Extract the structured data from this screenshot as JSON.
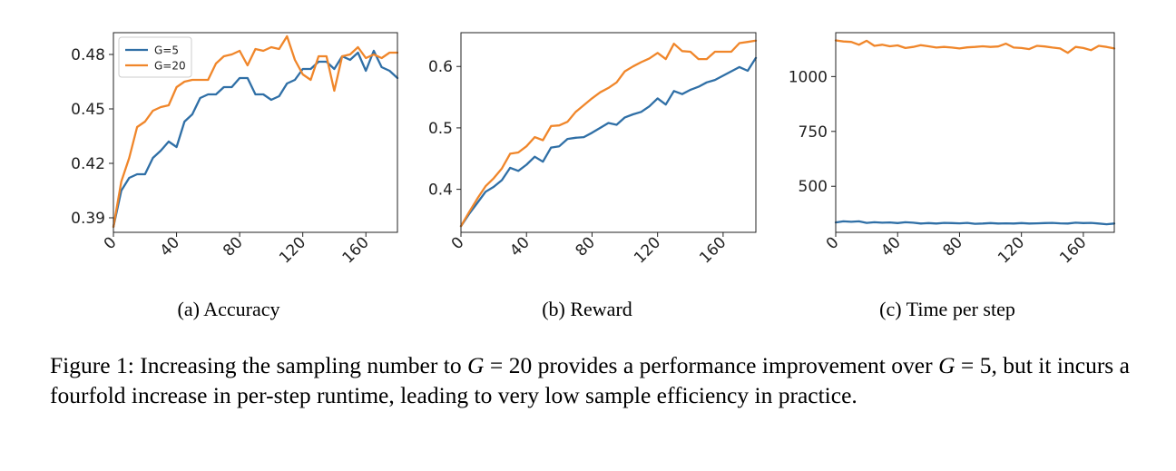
{
  "colors": {
    "g5": "#2f6fa6",
    "g20": "#f0862a"
  },
  "chart_data": [
    {
      "type": "line",
      "title": "",
      "xlabel": "",
      "ylabel": "",
      "xticks": [
        0,
        40,
        80,
        120,
        160
      ],
      "yticks": [
        0.39,
        0.42,
        0.45,
        0.48
      ],
      "ytick_labels": [
        "0.39",
        "0.42",
        "0.45",
        "0.48"
      ],
      "xlim": [
        0,
        180
      ],
      "ylim": [
        0.382,
        0.492
      ],
      "legend": {
        "placement": "top-left",
        "entries": [
          "G=5",
          "G=20"
        ]
      },
      "x": [
        0,
        5,
        10,
        15,
        20,
        25,
        30,
        35,
        40,
        45,
        50,
        55,
        60,
        65,
        70,
        75,
        80,
        85,
        90,
        95,
        100,
        105,
        110,
        115,
        120,
        125,
        130,
        135,
        140,
        145,
        150,
        155,
        160,
        165,
        170,
        175,
        180
      ],
      "series": [
        {
          "name": "G=5",
          "values": [
            0.385,
            0.405,
            0.412,
            0.414,
            0.414,
            0.423,
            0.427,
            0.432,
            0.429,
            0.443,
            0.447,
            0.456,
            0.458,
            0.458,
            0.462,
            0.462,
            0.467,
            0.467,
            0.458,
            0.458,
            0.455,
            0.457,
            0.464,
            0.466,
            0.472,
            0.472,
            0.476,
            0.476,
            0.472,
            0.479,
            0.477,
            0.481,
            0.471,
            0.482,
            0.473,
            0.471,
            0.467
          ]
        },
        {
          "name": "G=20",
          "values": [
            0.385,
            0.41,
            0.423,
            0.44,
            0.443,
            0.449,
            0.451,
            0.452,
            0.462,
            0.465,
            0.466,
            0.466,
            0.466,
            0.475,
            0.479,
            0.48,
            0.482,
            0.474,
            0.483,
            0.482,
            0.484,
            0.483,
            0.49,
            0.477,
            0.469,
            0.466,
            0.479,
            0.479,
            0.46,
            0.479,
            0.48,
            0.484,
            0.478,
            0.48,
            0.478,
            0.481,
            0.481
          ]
        }
      ]
    },
    {
      "type": "line",
      "title": "",
      "xlabel": "",
      "ylabel": "",
      "xticks": [
        0,
        40,
        80,
        120,
        160
      ],
      "yticks": [
        0.4,
        0.5,
        0.6
      ],
      "ytick_labels": [
        "0.4",
        "0.5",
        "0.6"
      ],
      "xlim": [
        0,
        180
      ],
      "ylim": [
        0.33,
        0.655
      ],
      "x": [
        0,
        5,
        10,
        15,
        20,
        25,
        30,
        35,
        40,
        45,
        50,
        55,
        60,
        65,
        70,
        75,
        80,
        85,
        90,
        95,
        100,
        105,
        110,
        115,
        120,
        125,
        130,
        135,
        140,
        145,
        150,
        155,
        160,
        165,
        170,
        175,
        180
      ],
      "series": [
        {
          "name": "G=5",
          "values": [
            0.34,
            0.36,
            0.378,
            0.396,
            0.404,
            0.415,
            0.435,
            0.43,
            0.44,
            0.453,
            0.445,
            0.468,
            0.47,
            0.482,
            0.484,
            0.485,
            0.492,
            0.5,
            0.508,
            0.505,
            0.517,
            0.522,
            0.526,
            0.535,
            0.548,
            0.538,
            0.56,
            0.555,
            0.562,
            0.567,
            0.574,
            0.578,
            0.585,
            0.592,
            0.599,
            0.593,
            0.614
          ]
        },
        {
          "name": "G=20",
          "values": [
            0.34,
            0.363,
            0.385,
            0.405,
            0.418,
            0.434,
            0.458,
            0.46,
            0.47,
            0.485,
            0.48,
            0.503,
            0.504,
            0.51,
            0.526,
            0.537,
            0.548,
            0.558,
            0.565,
            0.574,
            0.592,
            0.6,
            0.607,
            0.613,
            0.622,
            0.612,
            0.637,
            0.625,
            0.624,
            0.612,
            0.612,
            0.624,
            0.624,
            0.624,
            0.638,
            0.64,
            0.642
          ]
        }
      ]
    },
    {
      "type": "line",
      "title": "",
      "xlabel": "",
      "ylabel": "",
      "xticks": [
        0,
        40,
        80,
        120,
        160
      ],
      "yticks": [
        500,
        750,
        1000
      ],
      "ytick_labels": [
        "500",
        "750",
        "1000"
      ],
      "xlim": [
        0,
        180
      ],
      "ylim": [
        290,
        1200
      ],
      "x": [
        0,
        5,
        10,
        15,
        20,
        25,
        30,
        35,
        40,
        45,
        50,
        55,
        60,
        65,
        70,
        75,
        80,
        85,
        90,
        95,
        100,
        105,
        110,
        115,
        120,
        125,
        130,
        135,
        140,
        145,
        150,
        155,
        160,
        165,
        170,
        175,
        180
      ],
      "series": [
        {
          "name": "G=5",
          "values": [
            335,
            340,
            338,
            340,
            333,
            336,
            334,
            335,
            332,
            336,
            334,
            330,
            332,
            330,
            333,
            332,
            331,
            333,
            329,
            330,
            332,
            330,
            331,
            330,
            332,
            330,
            331,
            332,
            333,
            331,
            330,
            334,
            332,
            333,
            330,
            327,
            330
          ]
        },
        {
          "name": "G=20",
          "values": [
            1165,
            1160,
            1158,
            1145,
            1163,
            1140,
            1145,
            1138,
            1142,
            1130,
            1135,
            1143,
            1138,
            1132,
            1135,
            1132,
            1128,
            1133,
            1135,
            1138,
            1135,
            1137,
            1150,
            1132,
            1130,
            1125,
            1140,
            1137,
            1132,
            1128,
            1108,
            1135,
            1130,
            1120,
            1140,
            1135,
            1128
          ]
        }
      ]
    }
  ],
  "subcaptions": [
    "(a) Accuracy",
    "(b) Reward",
    "(c) Time per step"
  ],
  "caption": {
    "part1": "Figure 1: Increasing the sampling number to ",
    "var1": "G",
    "eq1": " = 20",
    "part2": " provides a performance improvement over ",
    "var2": "G",
    "eq2": " = 5",
    "part3": ", but it incurs a fourfold increase in per-step runtime, leading to very low sample efficiency in practice."
  }
}
